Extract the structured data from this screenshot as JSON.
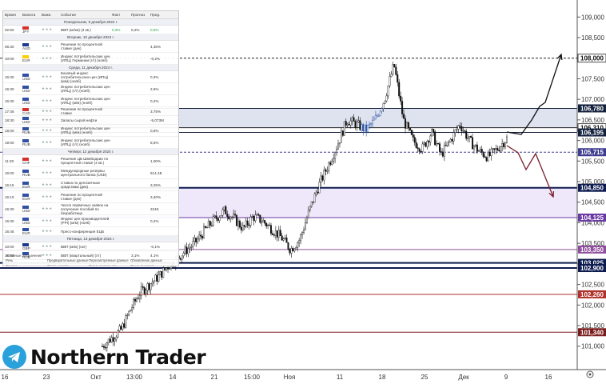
{
  "chart_data": {
    "type": "candlestick",
    "title": "",
    "y_ticks": [
      "109,000",
      "108,500",
      "108,000",
      "107,500",
      "107,000",
      "106,500",
      "106,000",
      "105,500",
      "105,000",
      "104,500",
      "104,000",
      "103,500",
      "103,000",
      "102,500",
      "102,000",
      "101,500",
      "101,000"
    ],
    "x_ticks": [
      "16",
      "23",
      "Окт",
      "13:00",
      "14",
      "21",
      "15:00",
      "Ноя",
      "11",
      "18",
      "25",
      "Дек",
      "9",
      "16"
    ],
    "ylim": [
      100.82,
      109.2
    ],
    "levels": [
      {
        "label": "108,000",
        "value": 108.0,
        "color": "#ffffff",
        "style": "dashed"
      },
      {
        "label": "106,780",
        "value": 106.78,
        "color": "#14213d",
        "style": "solid"
      },
      {
        "label": "106,310",
        "value": 106.31,
        "color": "#ffffff",
        "style": "solid"
      },
      {
        "label": "106,195",
        "value": 106.195,
        "color": "#14213d",
        "style": "solid"
      },
      {
        "label": "105,715",
        "value": 105.715,
        "color": "#3f3d8f",
        "style": "dashed"
      },
      {
        "label": "104,850",
        "value": 104.85,
        "color": "#0d1b4f",
        "style": "solid"
      },
      {
        "label": "104,125",
        "value": 104.125,
        "color": "#6a3aa3",
        "style": "solid"
      },
      {
        "label": "103,350",
        "value": 103.35,
        "color": "#8e4f9c",
        "style": "solid"
      },
      {
        "label": "103,025",
        "value": 103.025,
        "color": "#0d1b4f",
        "style": "solid"
      },
      {
        "label": "102,900",
        "value": 102.9,
        "color": "#0d1b4f",
        "style": "solid"
      },
      {
        "label": "102,260",
        "value": 102.26,
        "color": "#b0302a",
        "style": "solid"
      },
      {
        "label": "101,340",
        "value": 101.34,
        "color": "#7a1f1f",
        "style": "solid"
      }
    ],
    "zones": [
      {
        "from": 106.31,
        "to": 106.78,
        "color": "#dfe3ef"
      },
      {
        "from": 104.125,
        "to": 104.85,
        "color": "#efe8fb"
      }
    ],
    "price_path": [
      101.0,
      101.2,
      101.4,
      101.9,
      102.3,
      102.5,
      102.7,
      102.95,
      103.15,
      103.35,
      103.55,
      103.85,
      104.1,
      104.3,
      104.1,
      103.85,
      104.15,
      104.05,
      103.85,
      103.65,
      103.35,
      103.6,
      104.3,
      104.9,
      105.4,
      105.9,
      106.5,
      106.4,
      106.25,
      106.5,
      107.0,
      107.85,
      106.5,
      106.0,
      105.8,
      106.2,
      105.65,
      106.0,
      106.4,
      106.0,
      105.75,
      105.6,
      105.8,
      106.05
    ],
    "projections": [
      {
        "name": "",
        "color": "#111111",
        "points": [
          [
            634,
            165
          ],
          [
            652,
            168
          ],
          [
            665,
            150
          ],
          [
            675,
            133
          ],
          [
            682,
            128
          ],
          [
            702,
            68
          ]
        ]
      },
      {
        "name": "",
        "color": "#7a1f2e",
        "points": [
          [
            634,
            182
          ],
          [
            648,
            191
          ],
          [
            658,
            212
          ],
          [
            670,
            192
          ],
          [
            692,
            246
          ]
        ]
      }
    ]
  },
  "calendar": {
    "headers": {
      "time": "Время",
      "currency": "Валюта",
      "importance": "Важн.",
      "event": "Событие",
      "fact": "Факт",
      "forecast": "Прогноз",
      "prev": "Пред."
    },
    "days": [
      {
        "title": "Понедельник, 9 декабря 2024 г.",
        "rows": [
          {
            "time": "02:50",
            "cur": "JPY",
            "flag": "#d43030",
            "ev": "ВВП (кв/кв) (3 кв.)",
            "fact": "0,3%",
            "fc": "0,2%",
            "prev": "0,5%"
          }
        ]
      },
      {
        "title": "Вторник, 10 декабря 2024 г.",
        "rows": [
          {
            "time": "06:30",
            "cur": "AUD",
            "flag": "#1b3a8f",
            "ev": "Решение по процентной ставке (дек)",
            "fact": "",
            "fc": "",
            "prev": "4,35%"
          },
          {
            "time": "10:00",
            "cur": "EUR",
            "flag": "#ffce00",
            "ev": "Индекс потребительских цен (ИПЦ) Германии (г/г) (нояб)",
            "fact": "",
            "fc": "",
            "prev": "-0,2%"
          }
        ]
      },
      {
        "title": "Среда, 11 декабря 2024 г.",
        "rows": [
          {
            "time": "16:30",
            "cur": "USD",
            "flag": "#2e4fa3",
            "ev": "Базовый индекс потребительских цен (ИПЦ) (м/м) (нояб)",
            "fact": "",
            "fc": "",
            "prev": "0,3%"
          },
          {
            "time": "16:30",
            "cur": "USD",
            "flag": "#2e4fa3",
            "ev": "Индекс потребительских цен (ИПЦ) (г/г) (нояб)",
            "fact": "",
            "fc": "",
            "prev": "2,6%"
          },
          {
            "time": "16:30",
            "cur": "USD",
            "flag": "#2e4fa3",
            "ev": "Индекс потребительских цен (ИПЦ) (м/м) (нояб)",
            "fact": "",
            "fc": "",
            "prev": "0,2%"
          },
          {
            "time": "17:45",
            "cur": "CAD",
            "flag": "#d43030",
            "ev": "Решение по процентной ставке",
            "fact": "",
            "fc": "",
            "prev": "3,75%"
          },
          {
            "time": "18:30",
            "cur": "USD",
            "flag": "#2e4fa3",
            "ev": "Запасы сырой нефти",
            "fact": "",
            "fc": "",
            "prev": "-5,073M"
          },
          {
            "time": "18:00",
            "cur": "RUB",
            "flag": "#2e4fa3",
            "ev": "Индекс потребительских цен (ИПЦ) (м/м) (нояб)",
            "fact": "",
            "fc": "",
            "prev": "0,8%"
          },
          {
            "time": "19:00",
            "cur": "RUB",
            "flag": "#2e4fa3",
            "ev": "Индекс потребительских цен (ИПЦ) (г/г) (нояб)",
            "fact": "",
            "fc": "",
            "prev": "8,5%"
          }
        ]
      },
      {
        "title": "Четверг, 12 декабря 2024 г.",
        "rows": [
          {
            "time": "11:30",
            "cur": "CHF",
            "flag": "#d43030",
            "ev": "Решение ЦБ Швейцарии по процентной ставке (4 кв.)",
            "fact": "",
            "fc": "",
            "prev": "1,00%"
          },
          {
            "time": "16:00",
            "cur": "RUB",
            "flag": "#2e4fa3",
            "ev": "Международные резервы Центрального банка (USD)",
            "fact": "",
            "fc": "",
            "prev": "614,1B"
          },
          {
            "time": "16:15",
            "cur": "EUR",
            "flag": "#2e4fa3",
            "ev": "Ставка по депозитным средствам (дек)",
            "fact": "",
            "fc": "",
            "prev": "3,25%"
          },
          {
            "time": "16:15",
            "cur": "EUR",
            "flag": "#2e4fa3",
            "ev": "Решение по процентной ставке (дек)",
            "fact": "",
            "fc": "",
            "prev": "3,40%"
          },
          {
            "time": "16:30",
            "cur": "USD",
            "flag": "#2e4fa3",
            "ev": "Число первичных заявок на получение пособий по безработице",
            "fact": "",
            "fc": "",
            "prev": "224K"
          },
          {
            "time": "16:30",
            "cur": "USD",
            "flag": "#2e4fa3",
            "ev": "Индекс цен производителей (PPI) (м/м) (нояб)",
            "fact": "",
            "fc": "",
            "prev": "0,2%"
          },
          {
            "time": "16:45",
            "cur": "EUR",
            "flag": "#2e4fa3",
            "ev": "Пресс-конференция ЕЦБ",
            "fact": "",
            "fc": "",
            "prev": ""
          }
        ]
      },
      {
        "title": "Пятница, 13 декабря 2024 г.",
        "rows": [
          {
            "time": "10:00",
            "cur": "GBP",
            "flag": "#1b3a8f",
            "ev": "ВВП (м/м) (окт)",
            "fact": "",
            "fc": "",
            "prev": "-0,1%"
          },
          {
            "time": "16:00",
            "cur": "RUB",
            "flag": "#2e4fa3",
            "ev": "ВВП (квартальный) (г/г)",
            "fact": "",
            "fc": "3,1%",
            "prev": "4,1%"
          }
        ]
      }
    ],
    "legend": {
      "title": "Условные обозначения",
      "items": [
        "Речь",
        "Предварительные данные",
        "Пересмотренные данные",
        "Обновление данных",
        "Доклад",
        "Ожид. низкая волатильность",
        "Ожид. умеренная волатильность",
        "Ожид. высокая волатильность"
      ]
    }
  },
  "brand": {
    "name": "Northern Trader",
    "icon": "telegram-icon"
  },
  "colors": {
    "accent": "#2aa1da",
    "bg": "#ffffff",
    "up": "#111111",
    "down": "#111111"
  }
}
